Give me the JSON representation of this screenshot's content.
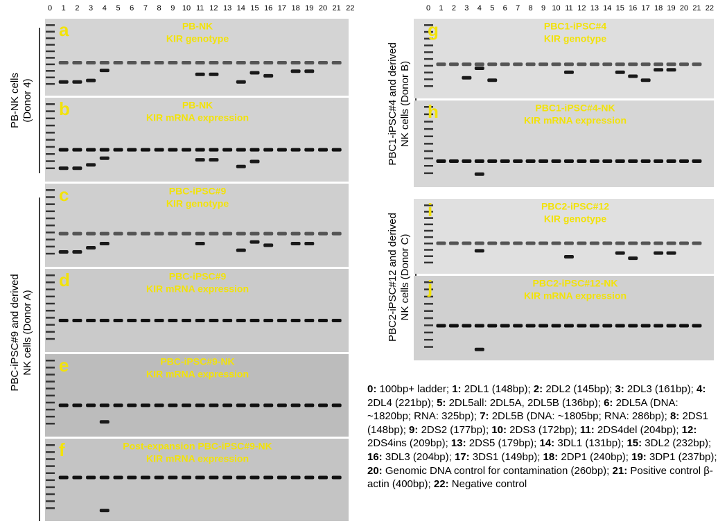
{
  "lane_numbers": [
    "0",
    "1",
    "2",
    "3",
    "4",
    "5",
    "6",
    "7",
    "8",
    "9",
    "10",
    "11",
    "12",
    "13",
    "14",
    "15",
    "16",
    "17",
    "18",
    "19",
    "20",
    "21",
    "22"
  ],
  "panels": [
    {
      "letter": "a",
      "title": [
        "PB-NK",
        "KIR genotype"
      ]
    },
    {
      "letter": "b",
      "title": [
        "PB-NK",
        "KIR mRNA expression"
      ]
    },
    {
      "letter": "c",
      "title": [
        "PBC-iPSC#9",
        "KIR genotype"
      ]
    },
    {
      "letter": "d",
      "title": [
        "PBC-iPSC#9",
        "KIR mRNA expression"
      ]
    },
    {
      "letter": "e",
      "title": [
        "PBC-iPSC#9-NK",
        "KIR mRNA expression"
      ]
    },
    {
      "letter": "f",
      "title": [
        "Post-expansion PBC-iPSC#9-NK",
        "KIR mRNA expression"
      ]
    },
    {
      "letter": "g",
      "title": [
        "PBC1-iPSC#4",
        "KIR genotype"
      ]
    },
    {
      "letter": "h",
      "title": [
        "PBC1-iPSC#4-NK",
        "KIR mRNA expression"
      ]
    },
    {
      "letter": "i",
      "title": [
        "PBC2-iPSC#12",
        "KIR genotype"
      ]
    },
    {
      "letter": "j",
      "title": [
        "PBC2-iPSC#12-NK",
        "KIR mRNA expression"
      ]
    }
  ],
  "side_labels": [
    {
      "lines": [
        "PB-NK cells",
        "(Donor 4)"
      ]
    },
    {
      "lines": [
        "PBC-iPSC#9 and derived",
        "NK cells (Donor A)"
      ]
    },
    {
      "lines": [
        "PBC1-iPSC#4 and derived",
        "NK cells (Donor B)"
      ]
    },
    {
      "lines": [
        "PBC2-iPSC#12 and derived",
        "NK cells (Donor C)"
      ]
    }
  ],
  "legend": [
    {
      "key": "0:",
      "text": "100bp+ ladder;"
    },
    {
      "key": "1:",
      "text": "2DL1 (148bp);"
    },
    {
      "key": "2:",
      "text": "2DL2 (145bp);"
    },
    {
      "key": "3:",
      "text": "2DL3 (161bp);"
    },
    {
      "key": "4:",
      "text": "2DL4 (221bp);"
    },
    {
      "key": "5:",
      "text": "2DL5all: 2DL5A, 2DL5B (136bp);"
    },
    {
      "key": "6:",
      "text": "2DL5A (DNA: ~1820bp; RNA: 325bp);"
    },
    {
      "key": "7:",
      "text": "2DL5B (DNA: ~1805bp; RNA: 286bp);"
    },
    {
      "key": "8:",
      "text": "2DS1 (148bp);"
    },
    {
      "key": "9:",
      "text": "2DS2 (177bp);"
    },
    {
      "key": "10:",
      "text": "2DS3 (172bp);"
    },
    {
      "key": "11:",
      "text": "2DS4del (204bp);"
    },
    {
      "key": "12:",
      "text": "2DS4ins (209bp);"
    },
    {
      "key": "13:",
      "text": "2DS5 (179bp);"
    },
    {
      "key": "14:",
      "text": "3DL1 (131bp);"
    },
    {
      "key": "15:",
      "text": "3DL2 (232bp);"
    },
    {
      "key": "16:",
      "text": "3DL3 (204bp);"
    },
    {
      "key": "17:",
      "text": "3DS1 (149bp);"
    },
    {
      "key": "18:",
      "text": "2DP1 (240bp);"
    },
    {
      "key": "19:",
      "text": "3DP1 (237bp);"
    },
    {
      "key": "20:",
      "text": "Genomic DNA control for contamination (260bp);"
    },
    {
      "key": "21:",
      "text": "Positive control β-actin (400bp);"
    },
    {
      "key": "22:",
      "text": "Negative control"
    }
  ]
}
